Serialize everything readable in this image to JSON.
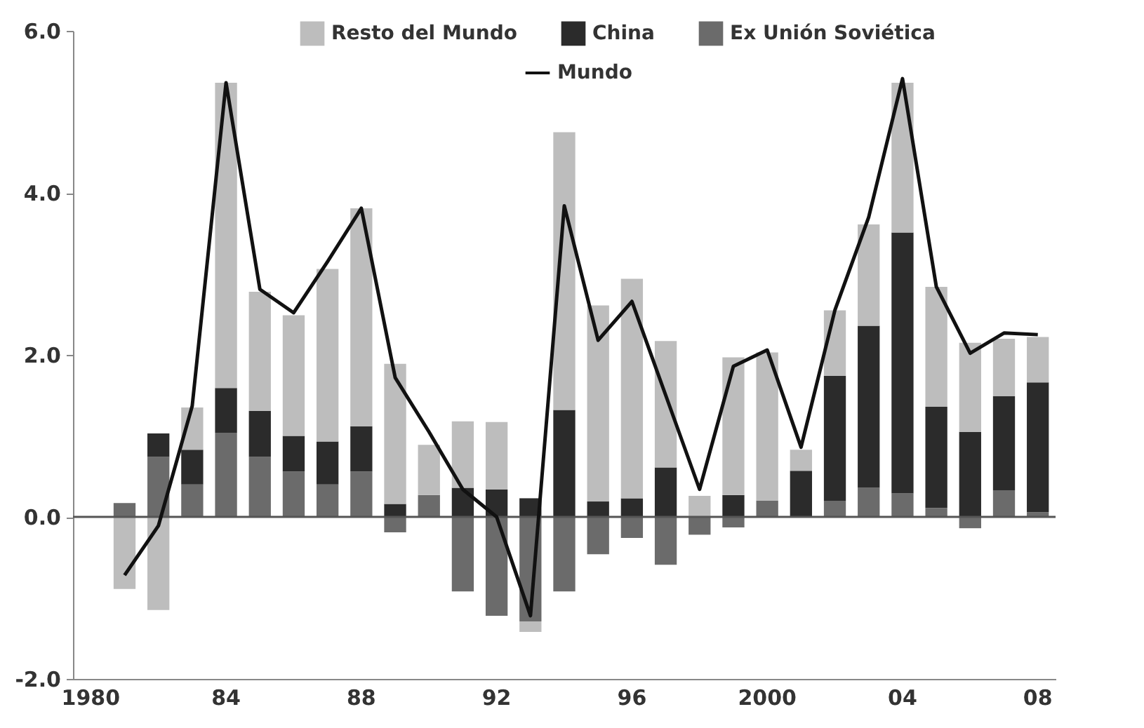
{
  "chart_data": {
    "type": "bar",
    "stacked": true,
    "categories": [
      "1980",
      null,
      null,
      null,
      "84",
      null,
      null,
      null,
      "88",
      null,
      null,
      null,
      "92",
      null,
      null,
      null,
      "96",
      null,
      null,
      null,
      "2000",
      null,
      null,
      null,
      "04",
      null,
      null,
      null,
      "08"
    ],
    "series": [
      {
        "name": "Ex Unión Soviética",
        "color": "#6b6b6b",
        "values": [
          null,
          0.17,
          0.74,
          0.4,
          1.04,
          0.74,
          0.56,
          0.4,
          0.56,
          -0.19,
          0.27,
          -0.92,
          -1.22,
          -1.29,
          -0.92,
          -0.46,
          -0.26,
          -0.59,
          -0.22,
          -0.13,
          0.2,
          0,
          0.2,
          0.36,
          0.29,
          0.11,
          -0.14,
          0.33,
          0.06
        ]
      },
      {
        "name": "China",
        "color": "#2b2b2b",
        "values": [
          null,
          0,
          0.29,
          0.43,
          0.55,
          0.57,
          0.44,
          0.53,
          0.56,
          0.16,
          0,
          0.36,
          0.34,
          0.23,
          1.32,
          0.19,
          0.23,
          0.61,
          0,
          0.27,
          0,
          0.57,
          1.54,
          2.0,
          3.22,
          1.25,
          1.05,
          1.16,
          1.6
        ]
      },
      {
        "name": "Resto del Mundo",
        "color": "#bdbdbd",
        "values": [
          null,
          -0.89,
          -1.15,
          0.52,
          3.77,
          1.47,
          1.49,
          2.13,
          2.69,
          1.73,
          0.62,
          0.82,
          0.83,
          -0.13,
          3.43,
          2.42,
          2.71,
          1.56,
          0.26,
          1.7,
          1.83,
          0.26,
          0.81,
          1.25,
          1.85,
          1.48,
          1.1,
          0.71,
          0.56
        ]
      },
      {
        "name": "Mundo",
        "type": "line",
        "color": "#111111",
        "values": [
          null,
          -0.72,
          -0.11,
          1.37,
          5.36,
          2.81,
          2.52,
          3.15,
          3.81,
          1.72,
          1.05,
          0.34,
          0.0,
          -1.22,
          3.84,
          2.18,
          2.66,
          1.5,
          0.34,
          1.86,
          2.06,
          0.86,
          2.55,
          3.7,
          5.41,
          2.84,
          2.02,
          2.27,
          2.25
        ]
      }
    ],
    "ylim": [
      -2,
      6
    ],
    "yticks": [
      {
        "value": -2,
        "label": "-2.0"
      },
      {
        "value": 0,
        "label": "0.0"
      },
      {
        "value": 2,
        "label": "2.0"
      },
      {
        "value": 4,
        "label": "4.0"
      },
      {
        "value": 6,
        "label": "6.0"
      }
    ],
    "ref_lines": [
      {
        "axis": "y",
        "value": 0,
        "color": "#555555"
      }
    ],
    "grid": false,
    "legend": "top",
    "marker": "none",
    "line_style": "solid"
  }
}
